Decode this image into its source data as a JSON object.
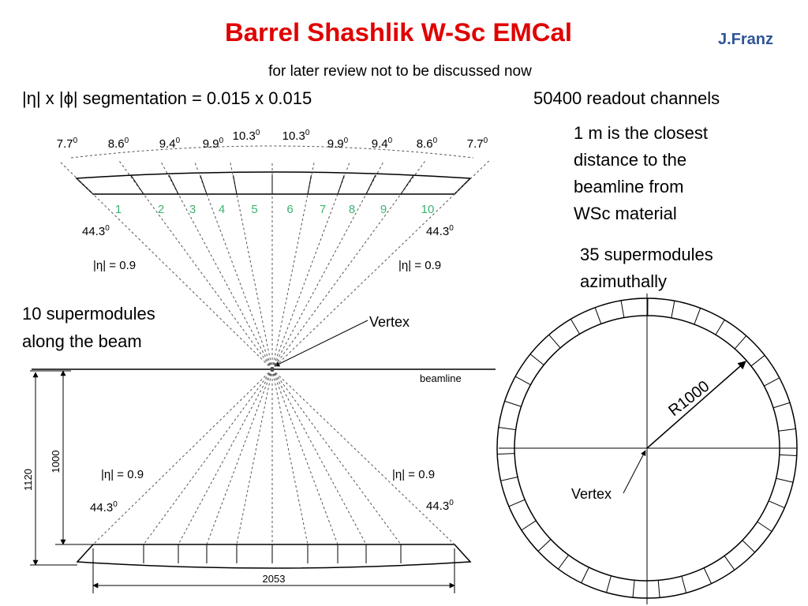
{
  "header": {
    "title": "Barrel Shashlik W-Sc EMCal",
    "author": "J.Franz",
    "subtitle": "for later review not to be discussed now"
  },
  "notes": {
    "segmentation": "|η| x |ϕ| segmentation = 0.015 x 0.015",
    "channels": "50400 readout channels",
    "closest_distance": [
      "1 m is the closest",
      "distance to the",
      "beamline from",
      "WSc material"
    ],
    "azimuthal": [
      "35 supermodules",
      "azimuthally"
    ],
    "along_beam": [
      "10 supermodules",
      "along the beam"
    ]
  },
  "side_view": {
    "angles": [
      {
        "value": "7.7",
        "unit": "0"
      },
      {
        "value": "8.6",
        "unit": "0"
      },
      {
        "value": "9.4",
        "unit": "0"
      },
      {
        "value": "9.9",
        "unit": "0"
      },
      {
        "value": "10.3",
        "unit": "0"
      },
      {
        "value": "10.3",
        "unit": "0"
      },
      {
        "value": "9.9",
        "unit": "0"
      },
      {
        "value": "9.4",
        "unit": "0"
      },
      {
        "value": "8.6",
        "unit": "0"
      },
      {
        "value": "7.7",
        "unit": "0"
      }
    ],
    "modules": [
      "1",
      "2",
      "3",
      "4",
      "5",
      "6",
      "7",
      "8",
      "9",
      "10"
    ],
    "edge_angles": [
      {
        "value": "44.3",
        "unit": "0"
      },
      {
        "value": "44.3",
        "unit": "0"
      },
      {
        "value": "44.3",
        "unit": "0"
      },
      {
        "value": "44.3",
        "unit": "0"
      }
    ],
    "eta_labels": [
      "|η| = 0.9",
      "|η| = 0.9",
      "|η| = 0.9",
      "|η| = 0.9"
    ],
    "vertex": "Vertex",
    "beamline": "beamline",
    "dimensions": {
      "height_total": "1120",
      "height_inner": "1000",
      "width": "2053"
    }
  },
  "end_view": {
    "radius": "R1000",
    "vertex": "Vertex"
  }
}
